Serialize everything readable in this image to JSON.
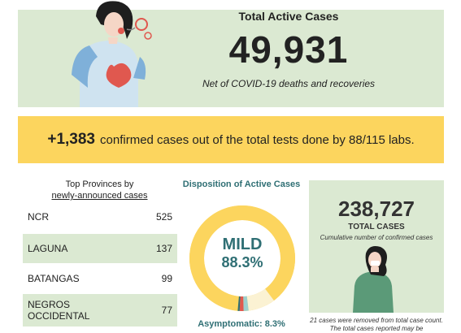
{
  "header": {
    "title": "Total Active Cases",
    "number": "49,931",
    "subtitle": "Net of COVID-19 deaths and recoveries"
  },
  "strip": {
    "count": "+1,383",
    "text": "confirmed cases out of the total tests done by 88/115 labs."
  },
  "provinces": {
    "title_line1": "Top Provinces by",
    "title_line2": "newly-announced cases",
    "rows": [
      {
        "name": "NCR",
        "value": "525"
      },
      {
        "name": "LAGUNA",
        "value": "137"
      },
      {
        "name": "BATANGAS",
        "value": "99"
      },
      {
        "name": "NEGROS OCCIDENTAL",
        "value": "77"
      }
    ]
  },
  "disposition": {
    "title": "Disposition of Active Cases",
    "center_label": "MILD",
    "center_value": "88.3%",
    "asymptomatic": "Asymptomatic: 8.3%",
    "segments": [
      {
        "value": 88.3,
        "color": "#fcd55e"
      },
      {
        "value": 8.3,
        "color": "#fbf2d3"
      },
      {
        "value": 1.5,
        "color": "#9ccfcf"
      },
      {
        "value": 1.2,
        "color": "#e0584f"
      },
      {
        "value": 0.7,
        "color": "#2f6f74"
      }
    ]
  },
  "total": {
    "number": "238,727",
    "label": "TOTAL CASES",
    "sub": "Cumulative number of confirmed cases",
    "footnote": "21 cases were removed from total case count. The total cases reported may be"
  },
  "colors": {
    "green_panel": "#dbe9d2",
    "yellow": "#fcd55e",
    "teal": "#2f6f74"
  }
}
